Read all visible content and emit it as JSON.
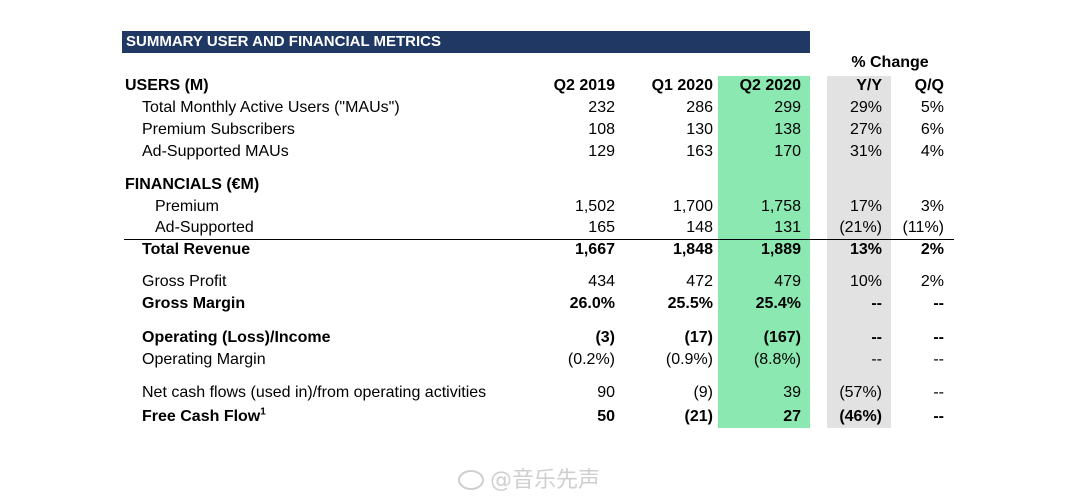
{
  "title": "SUMMARY USER AND FINANCIAL METRICS",
  "pct_change_header": "% Change",
  "headers": {
    "users_section": "USERS (M)",
    "q2_2019": "Q2 2019",
    "q1_2020": "Q1 2020",
    "q2_2020": "Q2 2020",
    "yy": "Y/Y",
    "qq": "Q/Q"
  },
  "users": [
    {
      "label": "Total Monthly Active Users (\"MAUs\")",
      "q2_2019": "232",
      "q1_2020": "286",
      "q2_2020": "299",
      "yy": "29%",
      "qq": "5%"
    },
    {
      "label": "Premium Subscribers",
      "q2_2019": "108",
      "q1_2020": "130",
      "q2_2020": "138",
      "yy": "27%",
      "qq": "6%"
    },
    {
      "label": "Ad-Supported MAUs",
      "q2_2019": "129",
      "q1_2020": "163",
      "q2_2020": "170",
      "yy": "31%",
      "qq": "4%"
    }
  ],
  "financials_section": "FINANCIALS (€M)",
  "financials": [
    {
      "label": "Premium",
      "q2_2019": "1,502",
      "q1_2020": "1,700",
      "q2_2020": "1,758",
      "yy": "17%",
      "qq": "3%"
    },
    {
      "label": "Ad-Supported",
      "q2_2019": "165",
      "q1_2020": "148",
      "q2_2020": "131",
      "yy": "(21%)",
      "qq": "(11%)"
    },
    {
      "label": "Total Revenue",
      "q2_2019": "1,667",
      "q1_2020": "1,848",
      "q2_2020": "1,889",
      "yy": "13%",
      "qq": "2%"
    },
    {
      "label": "Gross Profit",
      "q2_2019": "434",
      "q1_2020": "472",
      "q2_2020": "479",
      "yy": "10%",
      "qq": "2%"
    },
    {
      "label": "Gross Margin",
      "q2_2019": "26.0%",
      "q1_2020": "25.5%",
      "q2_2020": "25.4%",
      "yy": "--",
      "qq": "--"
    },
    {
      "label": "Operating (Loss)/Income",
      "q2_2019": "(3)",
      "q1_2020": "(17)",
      "q2_2020": "(167)",
      "yy": "--",
      "qq": "--"
    },
    {
      "label": "Operating Margin",
      "q2_2019": "(0.2%)",
      "q1_2020": "(0.9%)",
      "q2_2020": "(8.8%)",
      "yy": "--",
      "qq": "--"
    },
    {
      "label": "Net cash flows (used in)/from operating activities",
      "q2_2019": "90",
      "q1_2020": "(9)",
      "q2_2020": "39",
      "yy": "(57%)",
      "qq": "--"
    },
    {
      "label": "Free Cash Flow",
      "label_sup": "1",
      "q2_2019": "50",
      "q1_2020": "(21)",
      "q2_2020": "27",
      "yy": "(46%)",
      "qq": "--"
    }
  ],
  "watermark": "@音乐先声"
}
